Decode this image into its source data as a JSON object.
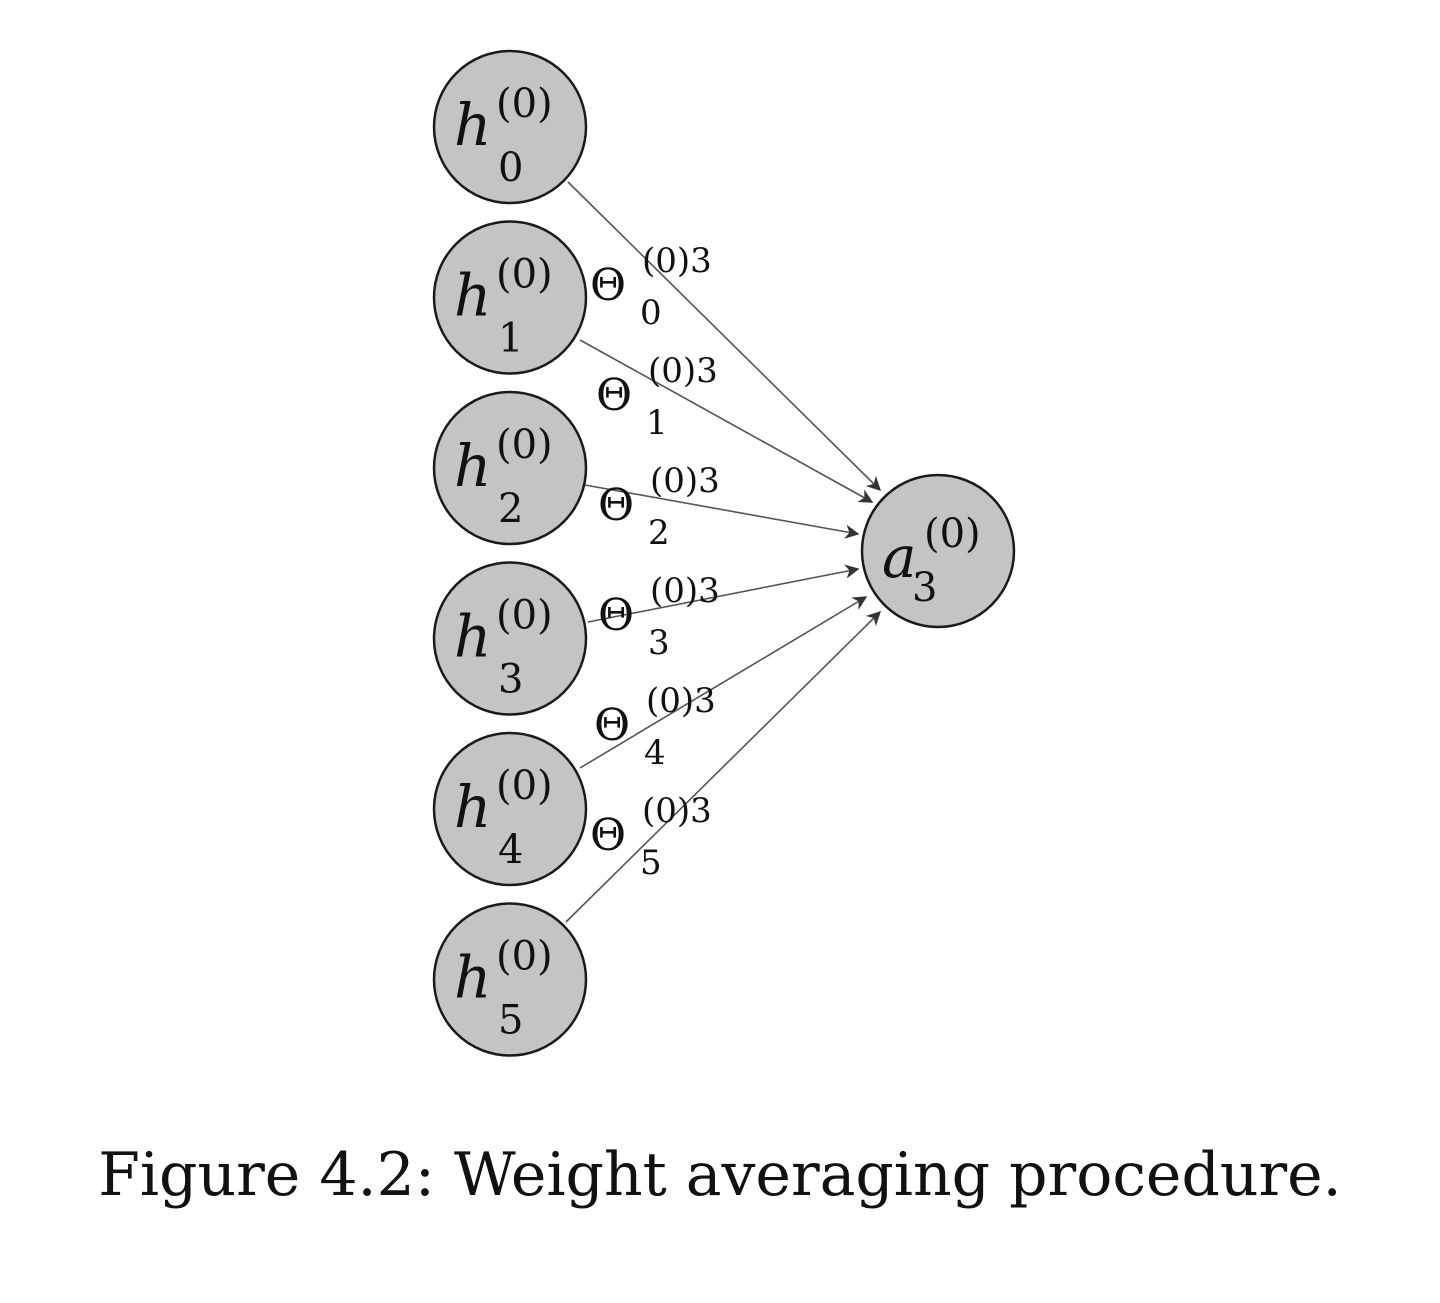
{
  "figure": {
    "caption": "Figure 4.2: Weight averaging procedure."
  },
  "input_nodes": [
    {
      "symbol": "h",
      "superscript": "(0)",
      "subscript": "0"
    },
    {
      "symbol": "h",
      "superscript": "(0)",
      "subscript": "1"
    },
    {
      "symbol": "h",
      "superscript": "(0)",
      "subscript": "2"
    },
    {
      "symbol": "h",
      "superscript": "(0)",
      "subscript": "3"
    },
    {
      "symbol": "h",
      "superscript": "(0)",
      "subscript": "4"
    },
    {
      "symbol": "h",
      "superscript": "(0)",
      "subscript": "5"
    }
  ],
  "output_node": {
    "symbol": "a",
    "superscript": "(0)",
    "subscript": "3"
  },
  "edges": [
    {
      "from": 0,
      "symbol": "Θ",
      "superscript": "(0)3",
      "subscript": "0"
    },
    {
      "from": 1,
      "symbol": "Θ",
      "superscript": "(0)3",
      "subscript": "1"
    },
    {
      "from": 2,
      "symbol": "Θ",
      "superscript": "(0)3",
      "subscript": "2"
    },
    {
      "from": 3,
      "symbol": "Θ",
      "superscript": "(0)3",
      "subscript": "3"
    },
    {
      "from": 4,
      "symbol": "Θ",
      "superscript": "(0)3",
      "subscript": "4"
    },
    {
      "from": 5,
      "symbol": "Θ",
      "superscript": "(0)3",
      "subscript": "5"
    }
  ],
  "colors": {
    "node_fill": "#c4c4c4",
    "node_stroke": "#1a1a1a",
    "edge": "#555555",
    "text": "#111111"
  }
}
